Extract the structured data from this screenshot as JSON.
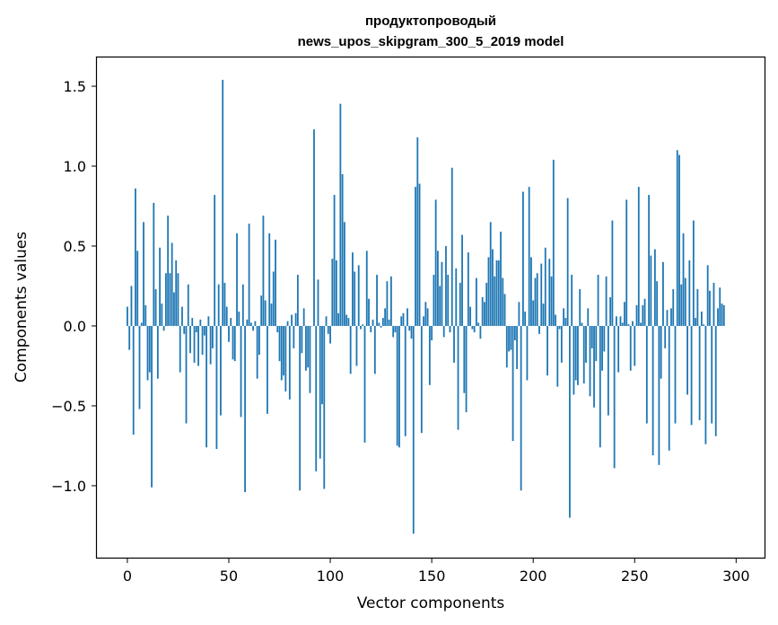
{
  "chart_data": {
    "type": "bar",
    "title": "продуктопроводый",
    "subtitle": "news_upos_skipgram_300_5_2019 model",
    "xlabel": "Vector components",
    "ylabel": "Components values",
    "xlim": [
      -15,
      314
    ],
    "ylim": [
      -1.45,
      1.68
    ],
    "xticks": [
      0,
      50,
      100,
      150,
      200,
      250,
      300
    ],
    "xtick_labels": [
      "0",
      "50",
      "100",
      "150",
      "200",
      "250",
      "300"
    ],
    "yticks": [
      -1.0,
      -0.5,
      0.0,
      0.5,
      1.0,
      1.5
    ],
    "ytick_labels": [
      "−1.0",
      "−0.5",
      "0.0",
      "0.5",
      "1.0",
      "1.5"
    ],
    "grid": false,
    "bar_color": "#1f77b4",
    "values": [
      0.12,
      -0.15,
      0.25,
      -0.68,
      0.86,
      0.47,
      -0.52,
      0.02,
      0.65,
      0.13,
      -0.34,
      -0.29,
      -1.01,
      0.77,
      0.23,
      -0.33,
      0.49,
      0.14,
      -0.03,
      0.33,
      0.69,
      0.33,
      0.52,
      0.21,
      0.41,
      0.33,
      -0.29,
      0.12,
      -0.05,
      -0.61,
      0.26,
      -0.17,
      0.05,
      -0.23,
      -0.04,
      -0.25,
      0.04,
      -0.18,
      -0.06,
      -0.76,
      0.06,
      -0.24,
      -0.14,
      0.82,
      -0.77,
      0.26,
      -0.56,
      1.54,
      0.27,
      0.12,
      -0.1,
      0.05,
      -0.21,
      -0.22,
      0.58,
      0.09,
      -0.57,
      0.26,
      -1.04,
      0.04,
      0.64,
      0.02,
      -0.03,
      0.03,
      -0.33,
      -0.18,
      0.19,
      0.69,
      0.16,
      -0.55,
      0.58,
      0.14,
      0.34,
      0.54,
      -0.04,
      -0.22,
      -0.34,
      -0.31,
      -0.41,
      0.03,
      -0.46,
      0.07,
      -0.14,
      0.08,
      0.32,
      -1.03,
      -0.17,
      0.11,
      -0.28,
      -0.26,
      -0.42,
      0.0,
      1.23,
      -0.91,
      0.29,
      -0.83,
      -0.49,
      -1.02,
      0.06,
      -0.05,
      -0.11,
      0.42,
      0.82,
      0.41,
      0.08,
      1.39,
      0.95,
      0.65,
      0.07,
      0.05,
      -0.3,
      0.46,
      0.34,
      -0.25,
      0.38,
      -0.02,
      0.01,
      -0.73,
      0.47,
      0.17,
      -0.04,
      0.04,
      -0.3,
      0.32,
      0.02,
      -0.01,
      0.05,
      0.11,
      0.28,
      0.04,
      0.31,
      -0.07,
      -0.04,
      -0.75,
      -0.76,
      0.06,
      0.08,
      -0.69,
      0.11,
      -0.03,
      -0.08,
      -1.3,
      0.87,
      1.18,
      0.89,
      -0.67,
      0.06,
      0.15,
      0.11,
      -0.37,
      -0.09,
      0.32,
      0.79,
      0.47,
      0.25,
      0.4,
      -0.07,
      0.5,
      0.32,
      -0.04,
      0.99,
      -0.23,
      0.36,
      -0.65,
      0.27,
      0.57,
      -0.42,
      -0.54,
      0.46,
      0.12,
      -0.02,
      -0.04,
      0.3,
      0.02,
      -0.08,
      0.18,
      0.15,
      0.27,
      0.43,
      0.65,
      0.48,
      0.31,
      0.41,
      0.41,
      0.59,
      0.3,
      0.2,
      -0.26,
      -0.16,
      -0.15,
      -0.72,
      -0.09,
      -0.27,
      0.15,
      -1.03,
      0.84,
      0.09,
      -0.34,
      0.87,
      0.43,
      0.16,
      0.3,
      0.33,
      -0.05,
      0.39,
      0.14,
      0.49,
      -0.31,
      0.42,
      0.31,
      1.04,
      0.07,
      -0.38,
      -0.02,
      -0.23,
      0.11,
      0.05,
      0.8,
      -1.2,
      0.32,
      -0.43,
      -0.34,
      -0.37,
      0.23,
      0.02,
      -0.36,
      -0.23,
      0.11,
      -0.44,
      -0.14,
      -0.51,
      -0.22,
      0.32,
      -0.76,
      -0.28,
      -0.16,
      0.31,
      -0.56,
      0.18,
      0.66,
      -0.89,
      0.06,
      -0.29,
      0.06,
      0.02,
      0.15,
      0.79,
      0.01,
      -0.28,
      0.03,
      -0.25,
      0.13,
      0.87,
      0.02,
      0.13,
      0.17,
      -0.61,
      0.82,
      0.44,
      -0.81,
      0.48,
      0.28,
      -0.87,
      -0.33,
      0.4,
      -0.14,
      0.1,
      -0.78,
      0.11,
      0.23,
      -0.61,
      1.1,
      1.07,
      0.26,
      0.58,
      0.3,
      -0.43,
      0.41,
      -0.62,
      0.66,
      0.05,
      0.23,
      -0.59,
      0.09,
      0.01,
      -0.74,
      0.38,
      0.22,
      -0.61,
      0.27,
      -0.69,
      0.11,
      0.24,
      0.14,
      0.13
    ]
  }
}
